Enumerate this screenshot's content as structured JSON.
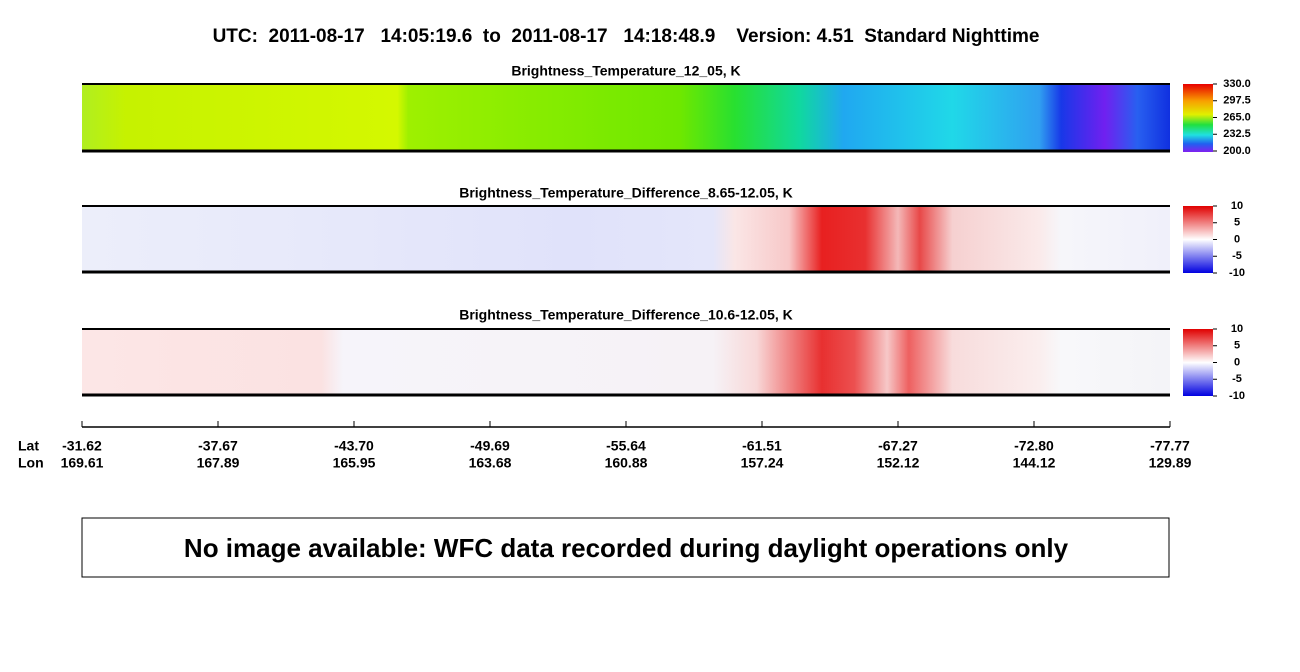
{
  "title": "UTC:  2011-08-17   14:05:19.6  to  2011-08-17   14:18:48.9    Version: 4.51  Standard Nighttime",
  "panels": [
    {
      "title": "Brightness_Temperature_12_05, K",
      "colorbar_labels": [
        "330.0",
        "297.5",
        "265.0",
        "232.5",
        "200.0"
      ]
    },
    {
      "title": "Brightness_Temperature_Difference_8.65-12.05, K",
      "colorbar_labels": [
        "10",
        "5",
        "0",
        "-5",
        "-10"
      ]
    },
    {
      "title": "Brightness_Temperature_Difference_10.6-12.05, K",
      "colorbar_labels": [
        "10",
        "5",
        "0",
        "-5",
        "-10"
      ]
    }
  ],
  "axis": {
    "lat_label": "Lat",
    "lon_label": "Lon",
    "lat": [
      "-31.62",
      "-37.67",
      "-43.70",
      "-49.69",
      "-55.64",
      "-61.51",
      "-67.27",
      "-72.80",
      "-77.77"
    ],
    "lon": [
      "169.61",
      "167.89",
      "165.95",
      "163.68",
      "160.88",
      "157.24",
      "152.12",
      "144.12",
      "129.89"
    ]
  },
  "notice": "No image available: WFC data recorded during daylight operations only"
}
